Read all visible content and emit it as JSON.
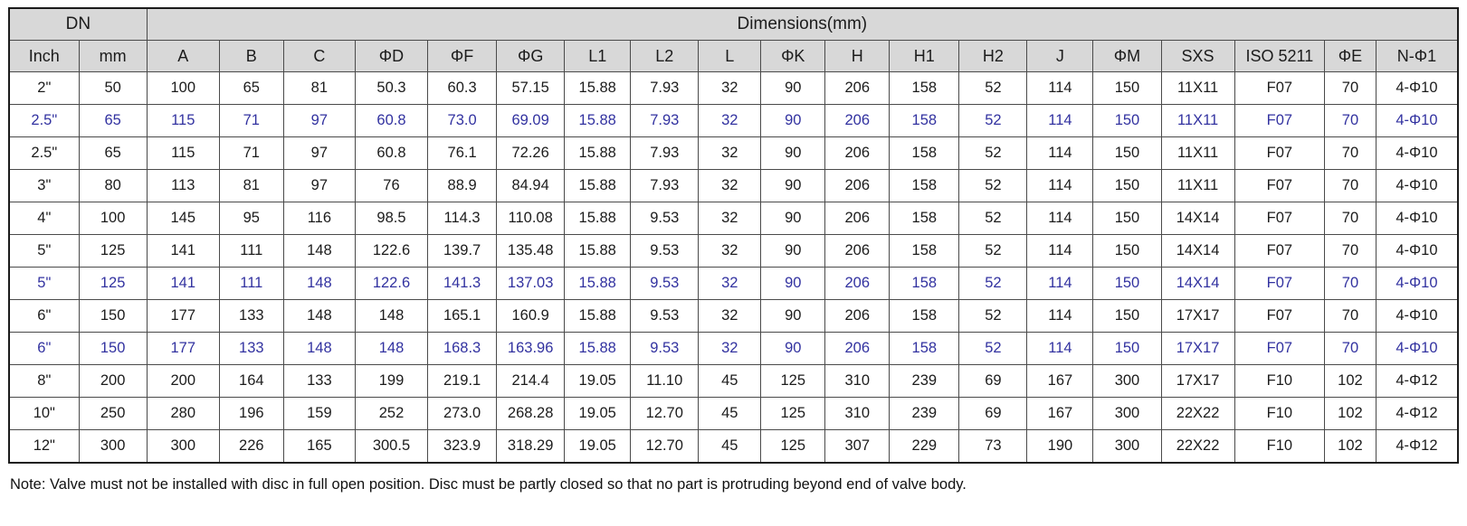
{
  "table": {
    "group_headers": {
      "dn": "DN",
      "dimensions": "Dimensions(mm)"
    },
    "columns": [
      "Inch",
      "mm",
      "A",
      "B",
      "C",
      "ΦD",
      "ΦF",
      "ΦG",
      "L1",
      "L2",
      "L",
      "ΦK",
      "H",
      "H1",
      "H2",
      "J",
      "ΦM",
      "SXS",
      "ISO 5211",
      "ΦE",
      "N-Φ1"
    ],
    "rows": [
      {
        "highlight": false,
        "cells": [
          "2\"",
          "50",
          "100",
          "65",
          "81",
          "50.3",
          "60.3",
          "57.15",
          "15.88",
          "7.93",
          "32",
          "90",
          "206",
          "158",
          "52",
          "114",
          "150",
          "11X11",
          "F07",
          "70",
          "4-Φ10"
        ]
      },
      {
        "highlight": true,
        "cells": [
          "2.5\"",
          "65",
          "115",
          "71",
          "97",
          "60.8",
          "73.0",
          "69.09",
          "15.88",
          "7.93",
          "32",
          "90",
          "206",
          "158",
          "52",
          "114",
          "150",
          "11X11",
          "F07",
          "70",
          "4-Φ10"
        ]
      },
      {
        "highlight": false,
        "cells": [
          "2.5\"",
          "65",
          "115",
          "71",
          "97",
          "60.8",
          "76.1",
          "72.26",
          "15.88",
          "7.93",
          "32",
          "90",
          "206",
          "158",
          "52",
          "114",
          "150",
          "11X11",
          "F07",
          "70",
          "4-Φ10"
        ]
      },
      {
        "highlight": false,
        "cells": [
          "3\"",
          "80",
          "113",
          "81",
          "97",
          "76",
          "88.9",
          "84.94",
          "15.88",
          "7.93",
          "32",
          "90",
          "206",
          "158",
          "52",
          "114",
          "150",
          "11X11",
          "F07",
          "70",
          "4-Φ10"
        ]
      },
      {
        "highlight": false,
        "cells": [
          "4\"",
          "100",
          "145",
          "95",
          "116",
          "98.5",
          "114.3",
          "110.08",
          "15.88",
          "9.53",
          "32",
          "90",
          "206",
          "158",
          "52",
          "114",
          "150",
          "14X14",
          "F07",
          "70",
          "4-Φ10"
        ]
      },
      {
        "highlight": false,
        "cells": [
          "5\"",
          "125",
          "141",
          "111",
          "148",
          "122.6",
          "139.7",
          "135.48",
          "15.88",
          "9.53",
          "32",
          "90",
          "206",
          "158",
          "52",
          "114",
          "150",
          "14X14",
          "F07",
          "70",
          "4-Φ10"
        ]
      },
      {
        "highlight": true,
        "cells": [
          "5\"",
          "125",
          "141",
          "111",
          "148",
          "122.6",
          "141.3",
          "137.03",
          "15.88",
          "9.53",
          "32",
          "90",
          "206",
          "158",
          "52",
          "114",
          "150",
          "14X14",
          "F07",
          "70",
          "4-Φ10"
        ]
      },
      {
        "highlight": false,
        "cells": [
          "6\"",
          "150",
          "177",
          "133",
          "148",
          "148",
          "165.1",
          "160.9",
          "15.88",
          "9.53",
          "32",
          "90",
          "206",
          "158",
          "52",
          "114",
          "150",
          "17X17",
          "F07",
          "70",
          "4-Φ10"
        ]
      },
      {
        "highlight": true,
        "cells": [
          "6\"",
          "150",
          "177",
          "133",
          "148",
          "148",
          "168.3",
          "163.96",
          "15.88",
          "9.53",
          "32",
          "90",
          "206",
          "158",
          "52",
          "114",
          "150",
          "17X17",
          "F07",
          "70",
          "4-Φ10"
        ]
      },
      {
        "highlight": false,
        "cells": [
          "8\"",
          "200",
          "200",
          "164",
          "133",
          "199",
          "219.1",
          "214.4",
          "19.05",
          "11.10",
          "45",
          "125",
          "310",
          "239",
          "69",
          "167",
          "300",
          "17X17",
          "F10",
          "102",
          "4-Φ12"
        ]
      },
      {
        "highlight": false,
        "cells": [
          "10\"",
          "250",
          "280",
          "196",
          "159",
          "252",
          "273.0",
          "268.28",
          "19.05",
          "12.70",
          "45",
          "125",
          "310",
          "239",
          "69",
          "167",
          "300",
          "22X22",
          "F10",
          "102",
          "4-Φ12"
        ]
      },
      {
        "highlight": false,
        "cells": [
          "12\"",
          "300",
          "300",
          "226",
          "165",
          "300.5",
          "323.9",
          "318.29",
          "19.05",
          "12.70",
          "45",
          "125",
          "307",
          "229",
          "73",
          "190",
          "300",
          "22X22",
          "F10",
          "102",
          "4-Φ12"
        ]
      }
    ]
  },
  "note": "Note: Valve must not be installed with disc in full open position. Disc must be partly closed so that no part is protruding beyond end of valve body.",
  "colors": {
    "highlight_text": "#3232a0",
    "header_bg": "#d8d8d8",
    "border": "#4a4a4a",
    "text": "#1c1c1c"
  }
}
